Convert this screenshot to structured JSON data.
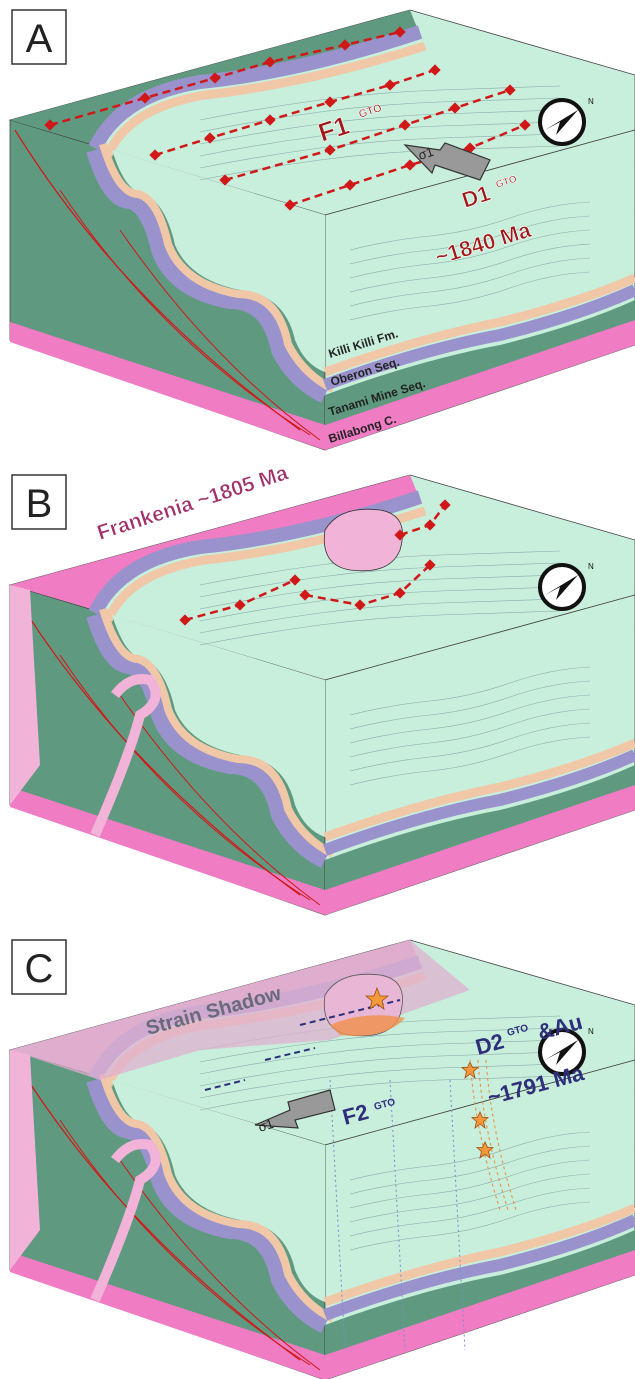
{
  "panels": [
    {
      "label": "A",
      "fold": {
        "name": "F1",
        "superscript": "GTO"
      },
      "event": {
        "name": "D1",
        "superscript": "GTO"
      },
      "age": "~1840 Ma",
      "stress": "σ1",
      "north": "N",
      "units": [
        "Killi Killi Fm.",
        "Oberon Seq.",
        "Tanami Mine Seq.",
        "Billabong C."
      ]
    },
    {
      "label": "B",
      "intrusion": "Frankenia ~1805 Ma",
      "north": "N"
    },
    {
      "label": "C",
      "shadow": "Strain Shadow",
      "fold": {
        "name": "F2",
        "superscript": "GTO"
      },
      "event": {
        "name": "D2",
        "superscript": "GTO",
        "extra": "&Au"
      },
      "age": "~1791 Ma",
      "stress": "σ1",
      "north": "N"
    }
  ]
}
